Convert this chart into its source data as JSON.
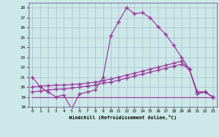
{
  "xlabel": "Windchill (Refroidissement éolien,°C)",
  "background_color": "#cce8e8",
  "line_color": "#993399",
  "grid_color": "#aabbcc",
  "xlim": [
    -0.5,
    23.5
  ],
  "ylim": [
    18,
    28.5
  ],
  "yticks": [
    18,
    19,
    20,
    21,
    22,
    23,
    24,
    25,
    26,
    27,
    28
  ],
  "xticks": [
    0,
    1,
    2,
    3,
    4,
    5,
    6,
    7,
    8,
    9,
    10,
    11,
    12,
    13,
    14,
    15,
    16,
    17,
    18,
    19,
    20,
    21,
    22,
    23
  ],
  "s1_x": [
    0,
    1,
    2,
    3,
    4,
    5,
    6,
    7,
    8,
    9,
    10,
    11,
    12,
    13,
    14,
    15,
    16,
    17,
    18,
    19,
    20,
    21,
    22,
    23
  ],
  "s1_y": [
    21.0,
    20.0,
    19.5,
    19.0,
    19.2,
    17.8,
    19.3,
    19.5,
    19.7,
    21.0,
    25.2,
    26.6,
    28.0,
    27.4,
    27.5,
    27.0,
    26.1,
    25.3,
    24.2,
    23.0,
    21.8,
    19.3,
    19.5,
    19.0
  ],
  "s2_x": [
    0,
    1,
    2,
    3,
    4,
    5,
    6,
    7,
    8,
    9,
    10,
    11,
    12,
    13,
    14,
    15,
    16,
    17,
    18,
    19,
    20,
    21,
    22,
    23
  ],
  "s2_y": [
    19.5,
    19.6,
    19.7,
    19.8,
    19.8,
    19.9,
    20.0,
    20.1,
    20.2,
    20.4,
    20.5,
    20.7,
    20.9,
    21.1,
    21.3,
    21.5,
    21.7,
    21.9,
    22.1,
    22.3,
    21.8,
    19.5,
    19.5,
    19.0
  ],
  "s3_x": [
    0,
    1,
    2,
    3,
    4,
    5,
    6,
    7,
    8,
    9,
    10,
    11,
    12,
    13,
    14,
    15,
    16,
    17,
    18,
    19,
    20,
    21,
    22,
    23
  ],
  "s3_y": [
    20.0,
    20.1,
    20.15,
    20.2,
    20.2,
    20.25,
    20.3,
    20.4,
    20.5,
    20.65,
    20.8,
    21.0,
    21.2,
    21.4,
    21.6,
    21.8,
    22.0,
    22.2,
    22.4,
    22.6,
    21.8,
    19.5,
    19.5,
    19.0
  ],
  "s4_x": [
    0,
    1,
    2,
    3,
    4,
    5,
    6,
    7,
    8,
    9,
    10,
    11,
    12,
    13,
    14,
    15,
    16,
    17,
    18,
    19,
    20,
    21,
    22,
    23
  ],
  "s4_y": [
    19.0,
    19.0,
    19.0,
    19.0,
    19.0,
    19.0,
    19.0,
    19.0,
    19.0,
    19.0,
    19.0,
    19.0,
    19.0,
    19.0,
    19.0,
    19.0,
    19.0,
    19.0,
    19.0,
    19.0,
    19.0,
    19.0,
    19.0,
    19.0
  ]
}
